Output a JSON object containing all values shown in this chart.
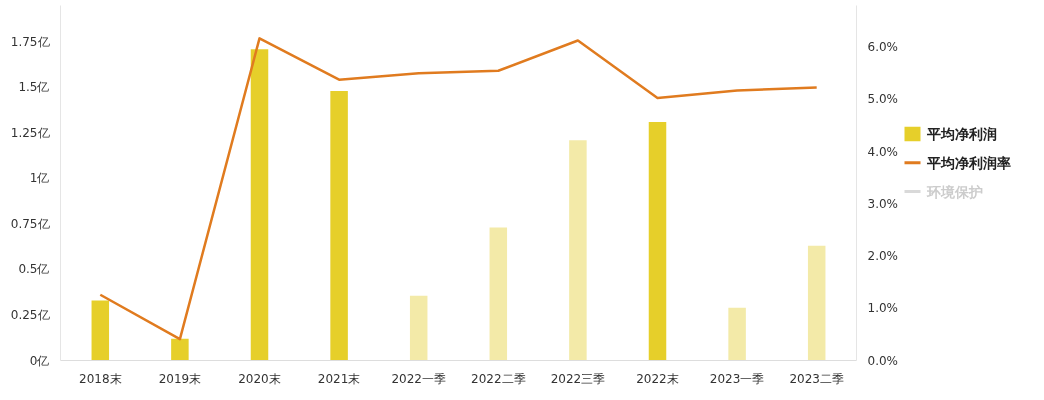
{
  "chart_data": {
    "type": "bar",
    "categories": [
      "2018末",
      "2019末",
      "2020末",
      "2021末",
      "2022一季",
      "2022二季",
      "2022三季",
      "2022末",
      "2023一季",
      "2023二季"
    ],
    "series": [
      {
        "name": "平均净利润",
        "color": "#e6cf2a",
        "colors": [
          "#e6cf2a",
          "#e6cf2a",
          "#e6cf2a",
          "#e6cf2a",
          "#f3eaa8",
          "#f3eaa8",
          "#f3eaa8",
          "#e6cf2a",
          "#f3eaa8",
          "#f3eaa8"
        ],
        "values": [
          0.33,
          0.12,
          1.71,
          1.48,
          0.355,
          0.73,
          1.21,
          1.31,
          0.29,
          0.63
        ]
      },
      {
        "name": "平均净利润率",
        "type": "line",
        "axis": "y2",
        "color": "#e07b1f",
        "values": [
          1.26,
          0.41,
          6.17,
          5.38,
          5.5,
          5.55,
          6.13,
          5.03,
          5.17,
          5.23
        ]
      },
      {
        "name": "环境保护",
        "type": "line",
        "color": "#d9d9d9",
        "values": [
          null,
          null,
          null,
          null,
          null,
          null,
          null,
          null,
          null,
          null
        ]
      }
    ],
    "ylim": [
      0,
      1.95
    ],
    "yticks": [
      {
        "value": 0,
        "label": "0亿"
      },
      {
        "value": 0.25,
        "label": "0.25亿"
      },
      {
        "value": 0.5,
        "label": "0.5亿"
      },
      {
        "value": 0.75,
        "label": "0.75亿"
      },
      {
        "value": 1,
        "label": "1亿"
      },
      {
        "value": 1.25,
        "label": "1.25亿"
      },
      {
        "value": 1.5,
        "label": "1.5亿"
      },
      {
        "value": 1.75,
        "label": "1.75亿"
      }
    ],
    "y2lim": [
      0,
      6.8
    ],
    "y2ticks": [
      {
        "value": 0,
        "label": "0.0%"
      },
      {
        "value": 1,
        "label": "1.0%"
      },
      {
        "value": 2,
        "label": "2.0%"
      },
      {
        "value": 3,
        "label": "3.0%"
      },
      {
        "value": 4,
        "label": "4.0%"
      },
      {
        "value": 5,
        "label": "5.0%"
      },
      {
        "value": 6,
        "label": "6.0%"
      }
    ],
    "grid": false,
    "legend": "right"
  }
}
